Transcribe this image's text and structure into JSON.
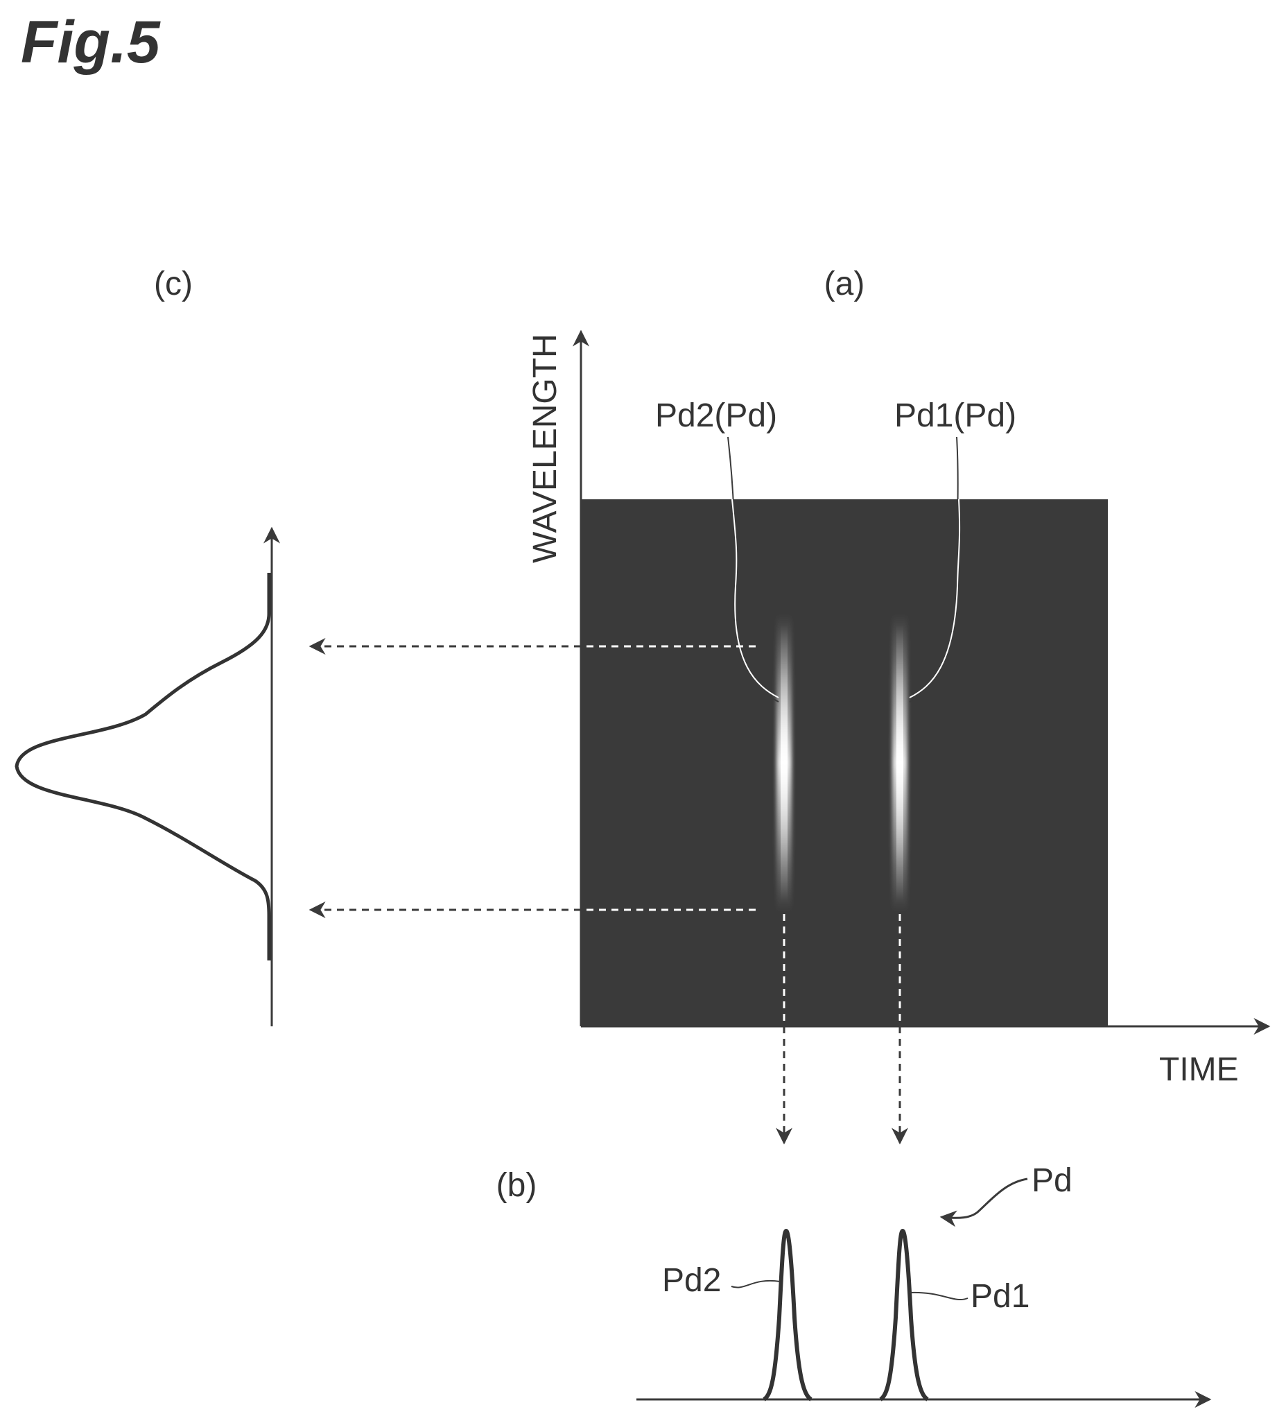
{
  "figure": {
    "title": "Fig.5"
  },
  "panel_a": {
    "label": "(a)",
    "y_axis_label": "WAVELENGTH",
    "x_axis_label": "TIME",
    "pulse_labels": [
      "Pd2(Pd)",
      "Pd1(Pd)"
    ],
    "background_color": "#3a3a3a",
    "pulse_color": "#ffffff"
  },
  "panel_b": {
    "label": "(b)",
    "group_label": "Pd",
    "pulse_labels": [
      "Pd2",
      "Pd1"
    ]
  },
  "panel_c": {
    "label": "(c)"
  }
}
